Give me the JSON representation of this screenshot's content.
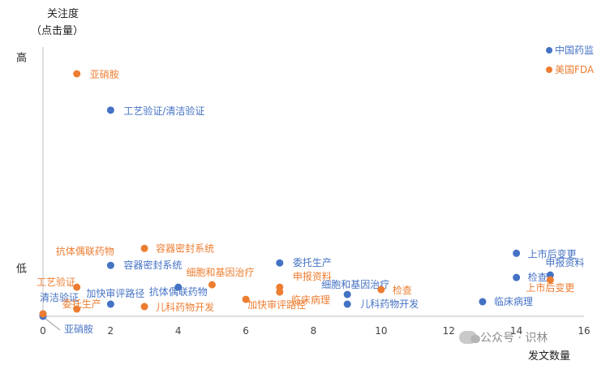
{
  "chart_data": {
    "type": "scatter",
    "ylabel_line1": "关注度",
    "ylabel_line2": "（点击量）",
    "xlabel": "发文数量",
    "xlim": [
      0,
      16
    ],
    "x_ticks": [
      "0",
      "2",
      "4",
      "6",
      "8",
      "10",
      "12",
      "14",
      "16"
    ],
    "y_level_labels": [
      {
        "label": "高",
        "level": "high"
      },
      {
        "label": "低",
        "level": "low"
      }
    ],
    "ylim": [
      0,
      100
    ],
    "grid": false,
    "legend": "top-right",
    "series": [
      {
        "name": "中国药监",
        "color": "#4472C4",
        "points": [
          {
            "label": "亚硝胺",
            "x": 0,
            "y": 0
          },
          {
            "label": "清洁验证",
            "x": 0,
            "y": 1
          },
          {
            "label": "工艺验证/清洁验证",
            "x": 2,
            "y": 85
          },
          {
            "label": "容器密封系统",
            "x": 2,
            "y": 21
          },
          {
            "label": "加快审评路径",
            "x": 2,
            "y": 5
          },
          {
            "label": "抗体偶联药物",
            "x": 4,
            "y": 12
          },
          {
            "label": "委托生产",
            "x": 7,
            "y": 22
          },
          {
            "label": "细胞和基因治疗",
            "x": 9,
            "y": 9
          },
          {
            "label": "儿科药物开发",
            "x": 9,
            "y": 5
          },
          {
            "label": "上市后变更",
            "x": 14,
            "y": 26
          },
          {
            "label": "检查",
            "x": 14,
            "y": 16
          },
          {
            "label": "申报资料",
            "x": 15,
            "y": 17
          },
          {
            "label": "临床病理",
            "x": 13,
            "y": 6
          }
        ]
      },
      {
        "name": "美国FDA",
        "color": "#ED7D31",
        "points": [
          {
            "label": "亚硝胺",
            "x": 1,
            "y": 100
          },
          {
            "label": "容器密封系统",
            "x": 3,
            "y": 28
          },
          {
            "label": "抗体偶联药物",
            "x": 1,
            "y": 12
          },
          {
            "label": "工艺验证",
            "x": 0,
            "y": 1
          },
          {
            "label": "委托生产",
            "x": 1,
            "y": 3
          },
          {
            "label": "儿科药物开发",
            "x": 3,
            "y": 4
          },
          {
            "label": "细胞和基因治疗",
            "x": 5,
            "y": 13
          },
          {
            "label": "加快审评路径",
            "x": 6,
            "y": 7
          },
          {
            "label": "申报资料",
            "x": 7,
            "y": 12
          },
          {
            "label": "临床病理",
            "x": 7,
            "y": 10
          },
          {
            "label": "检查",
            "x": 10,
            "y": 11
          },
          {
            "label": "上市后变更",
            "x": 15,
            "y": 15
          }
        ]
      }
    ]
  },
  "watermark": {
    "text": "公众号 · 识林"
  }
}
